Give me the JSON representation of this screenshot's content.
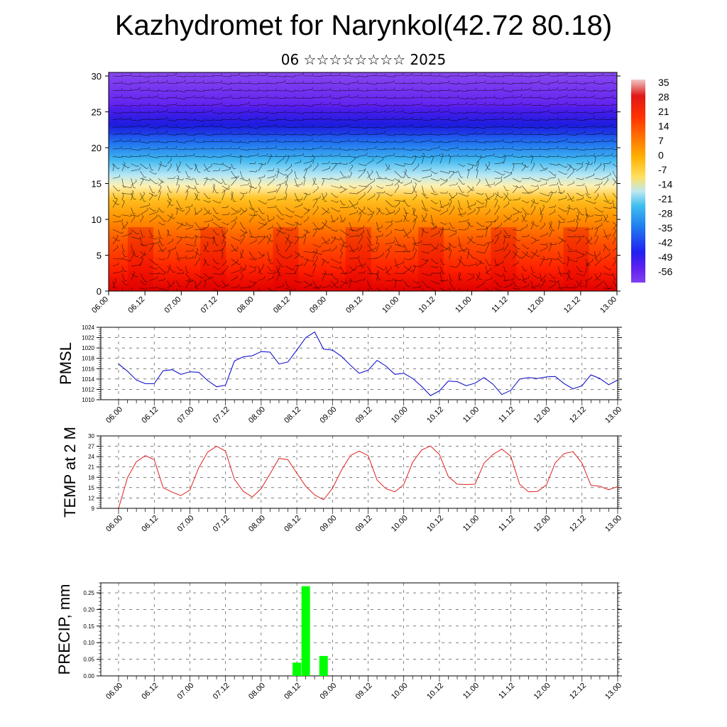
{
  "title": "Kazhydromet for Narynkol(42.72 80.18)",
  "subtitle": "06 ☆☆☆☆☆☆☆☆ 2025",
  "time_labels": [
    "06.00",
    "06.12",
    "07.00",
    "07.12",
    "08.00",
    "08.12",
    "09.00",
    "09.12",
    "10.00",
    "10.12",
    "11.00",
    "11.12",
    "12.00",
    "12.12",
    "13.00"
  ],
  "chart_data": [
    {
      "type": "heatmap",
      "name": "temperature-wind-profile",
      "ylim": [
        0,
        30.5
      ],
      "y_ticks": [
        "0",
        "5",
        "10",
        "15",
        "20",
        "25",
        "30"
      ],
      "colorbar": {
        "labels": [
          "35",
          "28",
          "21",
          "14",
          "7",
          "0",
          "-7",
          "-14",
          "-21",
          "-28",
          "-35",
          "-42",
          "-49",
          "-56"
        ],
        "colors": [
          "#f0c0c0",
          "#e02020",
          "#ff4000",
          "#ff8000",
          "#ffb000",
          "#ffe050",
          "#fff0a0",
          "#c0e8f0",
          "#40c0f0",
          "#2080f0",
          "#2040f0",
          "#3010f0",
          "#6020f0",
          "#8040f0"
        ]
      }
    },
    {
      "type": "line",
      "ylabel": "PMSL",
      "ylim": [
        1010,
        1024
      ],
      "y_ticks": [
        "1010",
        "1012",
        "1014",
        "1016",
        "1018",
        "1020",
        "1022",
        "1024"
      ],
      "color": "#0000cc",
      "values": [
        1016.9,
        1015.5,
        1013.8,
        1013.1,
        1013.1,
        1015.6,
        1015.8,
        1014.9,
        1015.4,
        1015.3,
        1013.7,
        1012.5,
        1012.8,
        1017.5,
        1018.3,
        1018.5,
        1019.3,
        1019.2,
        1016.9,
        1017.3,
        1019.6,
        1022.0,
        1023.1,
        1019.8,
        1019.6,
        1018.4,
        1016.7,
        1015.1,
        1015.7,
        1017.6,
        1016.5,
        1014.9,
        1015.1,
        1014.1,
        1012.6,
        1010.8,
        1011.7,
        1013.6,
        1013.5,
        1012.7,
        1013.2,
        1014.3,
        1013.0,
        1011.0,
        1011.8,
        1014.0,
        1014.3,
        1014.1,
        1014.4,
        1014.5,
        1013.1,
        1012.1,
        1012.7,
        1014.8,
        1014.1,
        1012.9,
        1013.8
      ]
    },
    {
      "type": "line",
      "ylabel": "TEMP at 2 M",
      "ylim": [
        9,
        30
      ],
      "y_ticks": [
        "9",
        "12",
        "15",
        "18",
        "21",
        "24",
        "27",
        "30"
      ],
      "color": "#e02020",
      "values": [
        9.0,
        17.9,
        22.5,
        24.3,
        23.1,
        15.0,
        13.7,
        12.7,
        14.3,
        20.8,
        25.3,
        27.0,
        25.6,
        17.4,
        13.9,
        12.3,
        14.7,
        19.0,
        23.5,
        23.1,
        19.2,
        15.4,
        12.9,
        11.5,
        14.8,
        20.0,
        24.3,
        25.6,
        24.3,
        17.2,
        14.7,
        13.8,
        15.9,
        22.4,
        25.9,
        27.1,
        24.6,
        18.2,
        16.0,
        15.9,
        16.0,
        22.1,
        24.6,
        26.2,
        24.1,
        16.0,
        13.8,
        13.9,
        15.8,
        22.2,
        24.9,
        25.4,
        22.1,
        15.7,
        15.4,
        14.4,
        15.3
      ]
    },
    {
      "type": "bar",
      "ylabel": "PRECIP, mm",
      "ylim": [
        0,
        0.28
      ],
      "y_ticks": [
        "0.00",
        "0.05",
        "0.10",
        "0.15",
        "0.20",
        "0.25"
      ],
      "color": "#00ff00",
      "values": [
        0,
        0,
        0,
        0,
        0,
        0,
        0,
        0,
        0,
        0,
        0,
        0,
        0,
        0,
        0,
        0,
        0,
        0,
        0,
        0,
        0.04,
        0.27,
        0,
        0.06,
        0,
        0,
        0,
        0,
        0,
        0,
        0,
        0,
        0,
        0,
        0,
        0,
        0,
        0,
        0,
        0,
        0,
        0,
        0,
        0,
        0,
        0,
        0,
        0,
        0,
        0,
        0,
        0,
        0,
        0,
        0,
        0,
        0
      ]
    }
  ]
}
